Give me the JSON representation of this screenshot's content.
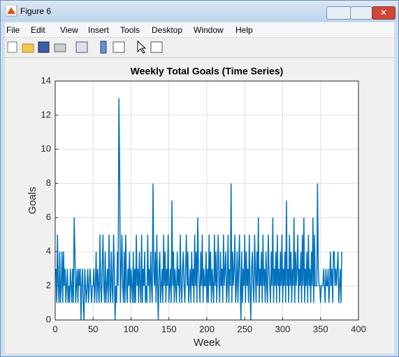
{
  "window": {
    "title": "Figure 6",
    "menu": [
      "File",
      "Edit",
      "View",
      "Insert",
      "Tools",
      "Desktop",
      "Window",
      "Help"
    ]
  },
  "chart_data": {
    "type": "line",
    "title": "Weekly Total Goals (Time Series)",
    "x_label": "Week",
    "y_label": "Goals",
    "color": "#0072bd",
    "grid": true,
    "xlim": [
      0,
      400
    ],
    "xticks": [
      0,
      50,
      100,
      150,
      200,
      250,
      300,
      350,
      400
    ],
    "ylim": [
      0,
      14
    ],
    "yticks": [
      0,
      2,
      4,
      6,
      8,
      10,
      12,
      14
    ],
    "x": [
      1,
      2,
      3,
      4,
      5,
      6,
      7,
      8,
      9,
      10,
      11,
      12,
      13,
      14,
      15,
      16,
      17,
      18,
      19,
      20,
      21,
      22,
      23,
      24,
      25,
      26,
      27,
      28,
      29,
      30,
      31,
      32,
      33,
      34,
      35,
      36,
      37,
      38,
      39,
      40,
      41,
      42,
      43,
      44,
      45,
      46,
      47,
      48,
      49,
      50,
      51,
      52,
      53,
      54,
      55,
      56,
      57,
      58,
      59,
      60,
      61,
      62,
      63,
      64,
      65,
      66,
      67,
      68,
      69,
      70,
      71,
      72,
      73,
      74,
      75,
      76,
      77,
      78,
      79,
      80,
      81,
      82,
      83,
      84,
      85,
      86,
      87,
      88,
      89,
      90,
      91,
      92,
      93,
      94,
      95,
      96,
      97,
      98,
      99,
      100,
      101,
      102,
      103,
      104,
      105,
      106,
      107,
      108,
      109,
      110,
      111,
      112,
      113,
      114,
      115,
      116,
      117,
      118,
      119,
      120,
      121,
      122,
      123,
      124,
      125,
      126,
      127,
      128,
      129,
      130,
      131,
      132,
      133,
      134,
      135,
      136,
      137,
      138,
      139,
      140,
      141,
      142,
      143,
      144,
      145,
      146,
      147,
      148,
      149,
      150,
      151,
      152,
      153,
      154,
      155,
      156,
      157,
      158,
      159,
      160,
      161,
      162,
      163,
      164,
      165,
      166,
      167,
      168,
      169,
      170,
      171,
      172,
      173,
      174,
      175,
      176,
      177,
      178,
      179,
      180,
      181,
      182,
      183,
      184,
      185,
      186,
      187,
      188,
      189,
      190,
      191,
      192,
      193,
      194,
      195,
      196,
      197,
      198,
      199,
      200,
      201,
      202,
      203,
      204,
      205,
      206,
      207,
      208,
      209,
      210,
      211,
      212,
      213,
      214,
      215,
      216,
      217,
      218,
      219,
      220,
      221,
      222,
      223,
      224,
      225,
      226,
      227,
      228,
      229,
      230,
      231,
      232,
      233,
      234,
      235,
      236,
      237,
      238,
      239,
      240,
      241,
      242,
      243,
      244,
      245,
      246,
      247,
      248,
      249,
      250,
      251,
      252,
      253,
      254,
      255,
      256,
      257,
      258,
      259,
      260,
      261,
      262,
      263,
      264,
      265,
      266,
      267,
      268,
      269,
      270,
      271,
      272,
      273,
      274,
      275,
      276,
      277,
      278,
      279,
      280,
      281,
      282,
      283,
      284,
      285,
      286,
      287,
      288,
      289,
      290,
      291,
      292,
      293,
      294,
      295,
      296,
      297,
      298,
      299,
      300,
      301,
      302,
      303,
      304,
      305,
      306,
      307,
      308,
      309,
      310,
      311,
      312,
      313,
      314,
      315,
      316,
      317,
      318,
      319,
      320,
      321,
      322,
      323,
      324,
      325,
      326,
      327,
      328,
      329,
      330,
      331,
      332,
      333,
      334,
      335,
      336,
      337,
      338,
      339,
      340,
      341,
      342,
      343,
      344,
      345,
      346,
      347,
      348,
      349,
      350,
      351,
      352,
      353,
      354,
      355,
      356,
      357,
      358,
      359,
      360,
      361,
      362,
      363,
      364,
      365,
      366,
      367,
      368,
      369,
      370,
      371,
      372,
      373,
      374,
      375,
      376,
      377,
      378
    ],
    "values": [
      3,
      1,
      5,
      2,
      1,
      4,
      1,
      2,
      4,
      1,
      4,
      2,
      3,
      1,
      2,
      3,
      1,
      2,
      1,
      3,
      2,
      1,
      3,
      1,
      6,
      4,
      1,
      2,
      3,
      1,
      3,
      2,
      3,
      0,
      2,
      3,
      1,
      0,
      3,
      2,
      1,
      2,
      3,
      1,
      2,
      3,
      2,
      1,
      2,
      2,
      3,
      1,
      2,
      4,
      1,
      3,
      2,
      1,
      5,
      2,
      1,
      3,
      5,
      2,
      1,
      4,
      1,
      2,
      3,
      1,
      5,
      2,
      1,
      4,
      2,
      1,
      5,
      3,
      0,
      2,
      1,
      4,
      2,
      13,
      9,
      1,
      3,
      5,
      2,
      1,
      4,
      1,
      5,
      2,
      1,
      3,
      2,
      4,
      1,
      3,
      2,
      1,
      4,
      1,
      3,
      1,
      5,
      2,
      3,
      1,
      4,
      2,
      1,
      5,
      1,
      3,
      2,
      4,
      1,
      2,
      1,
      5,
      2,
      3,
      1,
      4,
      2,
      1,
      8,
      3,
      2,
      4,
      1,
      5,
      2,
      0,
      3,
      4,
      1,
      2,
      3,
      1,
      5,
      2,
      4,
      1,
      3,
      2,
      5,
      1,
      2,
      3,
      1,
      7,
      2,
      4,
      1,
      3,
      2,
      1,
      4,
      2,
      3,
      1,
      5,
      2,
      1,
      3,
      4,
      2,
      1,
      3,
      5,
      2,
      4,
      1,
      2,
      3,
      1,
      4,
      2,
      3,
      1,
      5,
      2,
      4,
      1,
      6,
      3,
      2,
      1,
      4,
      2,
      5,
      1,
      3,
      2,
      2,
      4,
      1,
      3,
      1,
      5,
      2,
      4,
      1,
      3,
      2,
      1,
      5,
      2,
      4,
      1,
      3,
      5,
      2,
      1,
      4,
      2,
      3,
      1,
      5,
      2,
      3,
      4,
      1,
      2,
      5,
      1,
      3,
      2,
      8,
      1,
      4,
      2,
      3,
      5,
      1,
      2,
      4,
      1,
      3,
      5,
      2,
      0,
      4,
      1,
      3,
      2,
      5,
      1,
      4,
      2,
      3,
      1,
      5,
      2,
      0,
      3,
      4,
      2,
      1,
      5,
      3,
      1,
      4,
      2,
      6,
      1,
      3,
      2,
      4,
      1,
      5,
      2,
      3,
      1,
      4,
      2,
      1,
      5,
      3,
      2,
      1,
      4,
      2,
      6,
      1,
      3,
      2,
      4,
      1,
      5,
      2,
      3,
      1,
      4,
      2,
      5,
      1,
      3,
      2,
      4,
      1,
      7,
      2,
      3,
      1,
      5,
      2,
      4,
      1,
      3,
      2,
      6,
      1,
      4,
      2,
      3,
      5,
      1,
      3,
      2,
      4,
      1,
      5,
      2,
      6,
      1,
      3,
      2,
      4,
      1,
      5,
      2,
      3,
      1,
      4,
      2,
      6,
      1,
      5,
      2,
      2,
      2,
      8,
      3,
      2,
      2,
      1,
      2,
      2,
      2,
      3,
      2,
      1,
      3,
      2,
      2,
      3,
      1,
      2,
      4,
      2,
      3,
      1,
      4,
      4,
      2,
      3,
      2,
      3,
      4,
      1,
      2,
      3,
      1,
      4
    ]
  }
}
